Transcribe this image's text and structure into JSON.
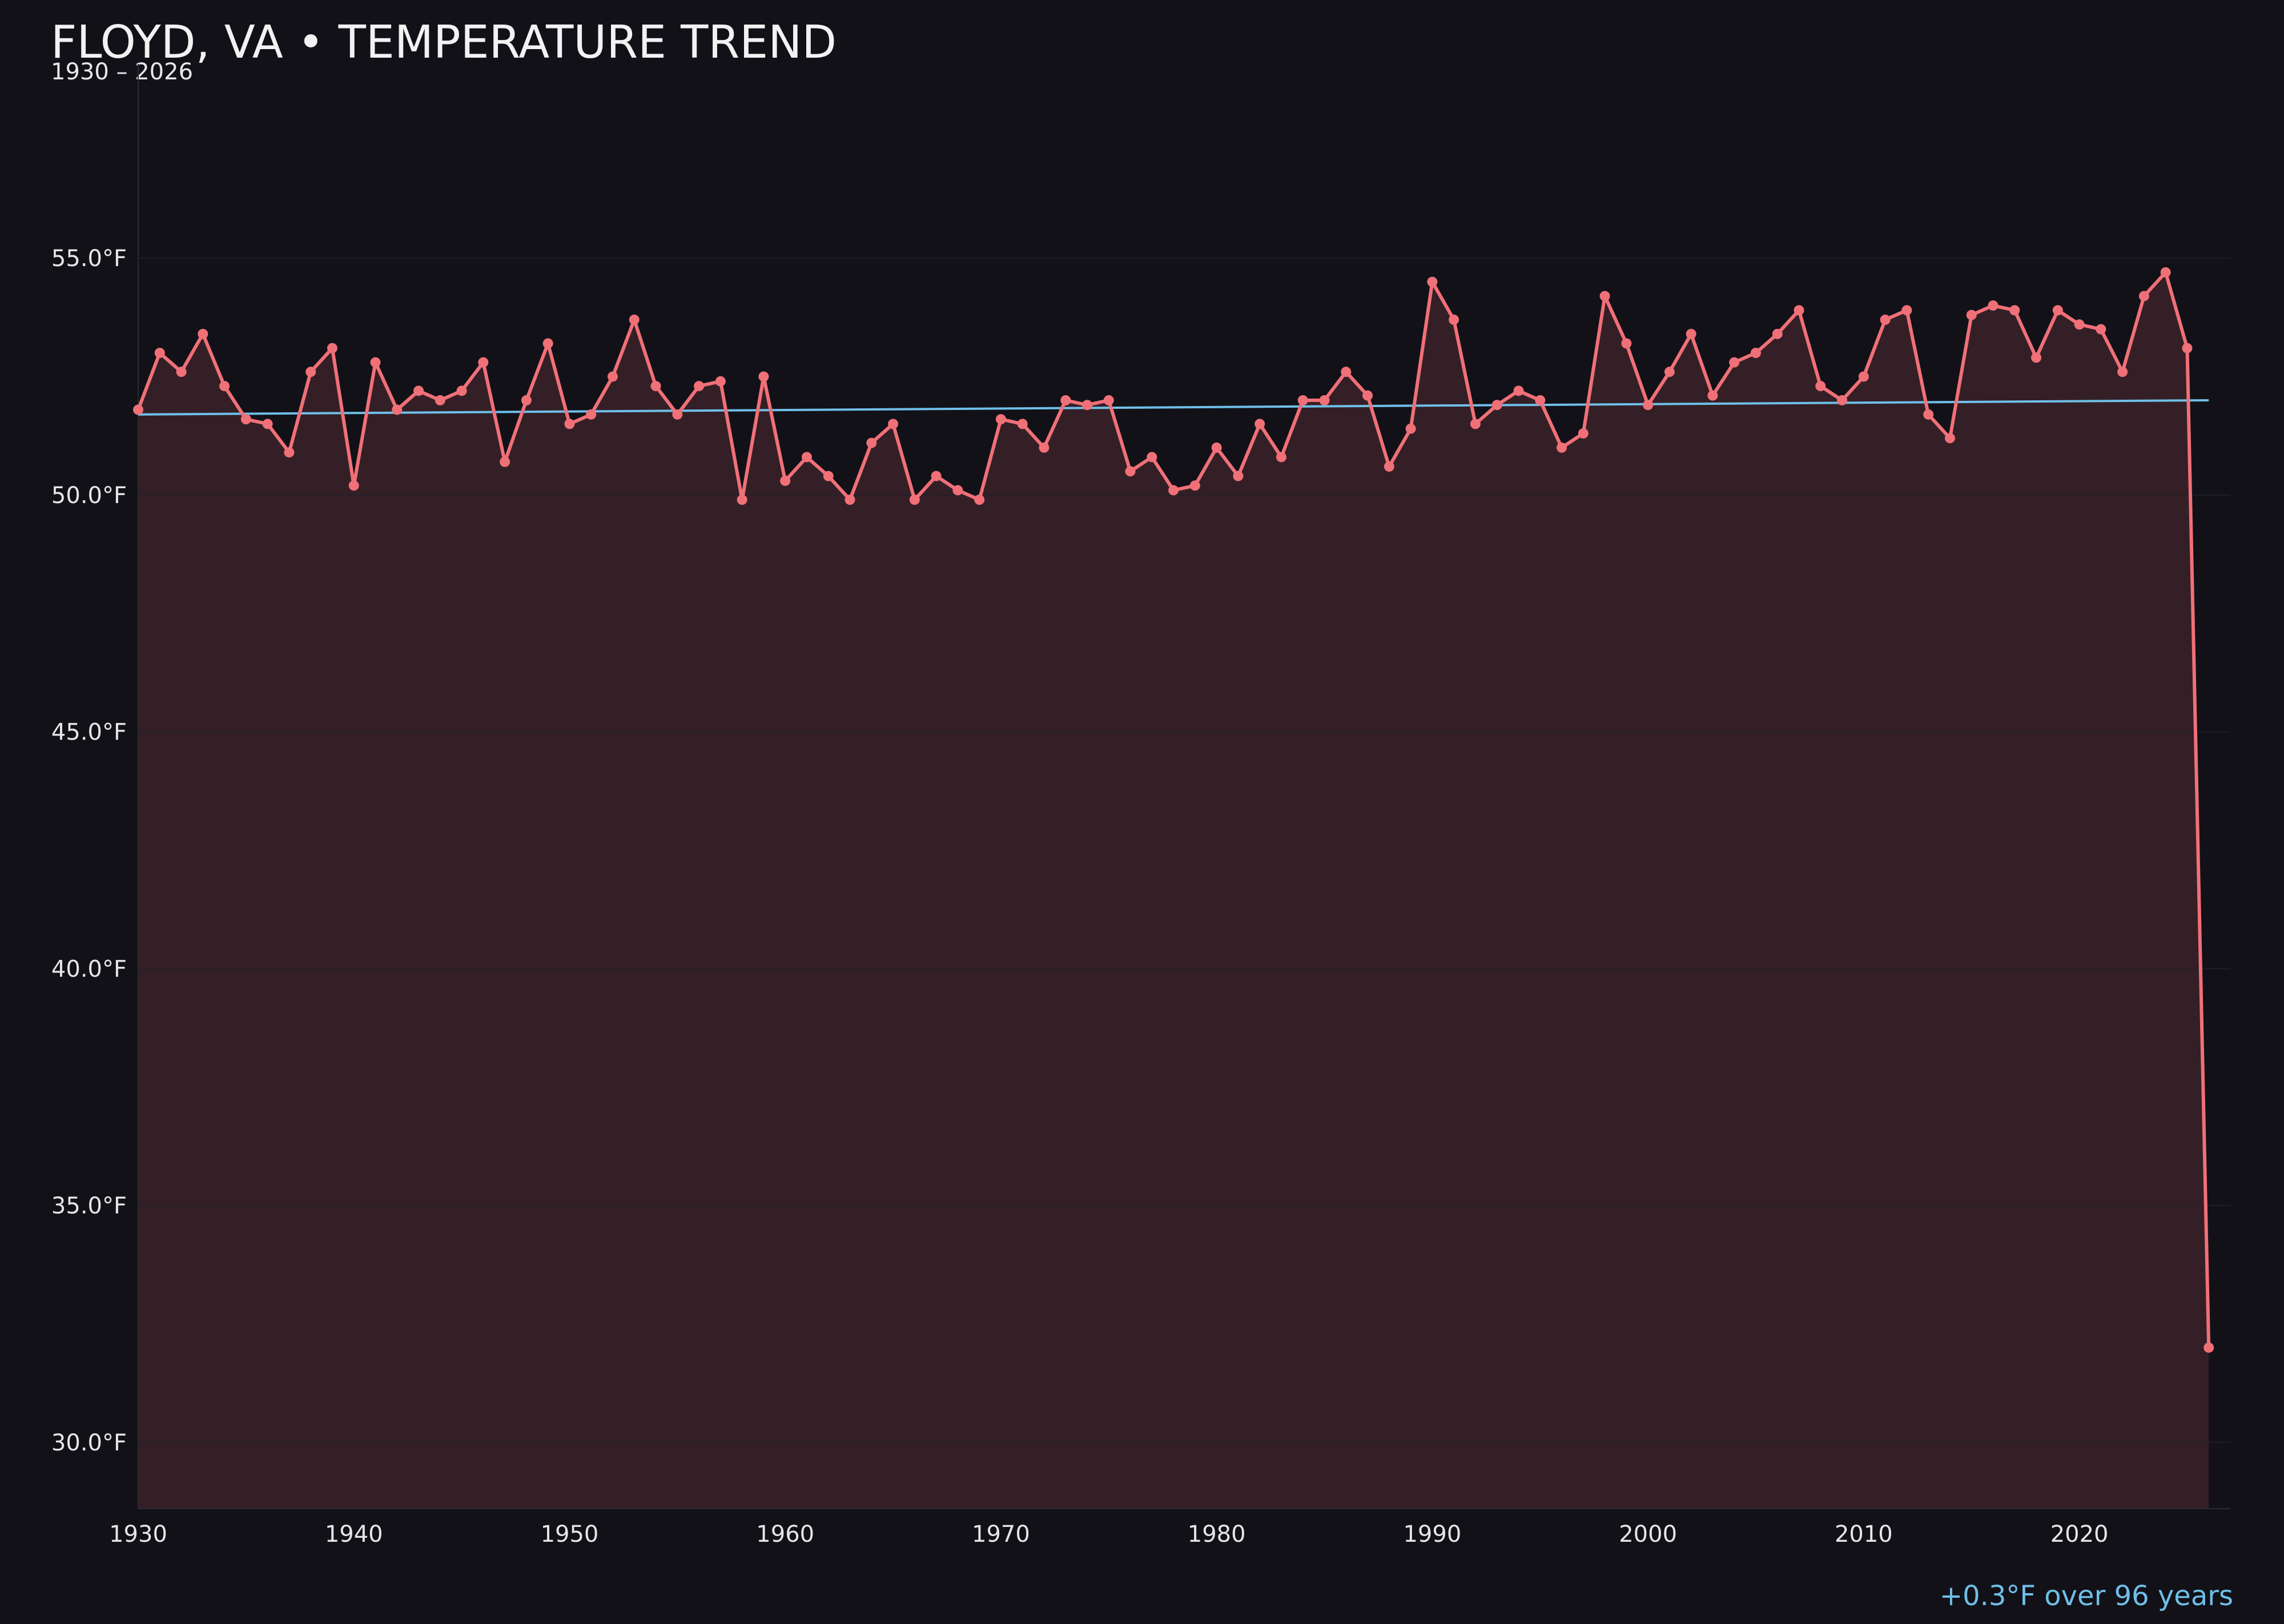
{
  "title": "FLOYD, VA • TEMPERATURE TREND",
  "subtitle": "1930 – 2026",
  "annotation": "+0.3°F over 96 years",
  "colors": {
    "background": "#121118",
    "series": "#f07078",
    "fill": "#351f26",
    "trend": "#6fbfe8",
    "grid": "#24212a",
    "axis": "#2c2a33",
    "text": "#e6e6e6"
  },
  "chart_data": {
    "type": "line",
    "title": "FLOYD, VA • TEMPERATURE TREND",
    "subtitle": "1930 – 2026",
    "xlabel": "",
    "ylabel": "",
    "x_ticks": [
      1930,
      1940,
      1950,
      1960,
      1970,
      1980,
      1990,
      2000,
      2010,
      2020
    ],
    "y_ticks": [
      {
        "value": 30,
        "label": "30.0°F"
      },
      {
        "value": 35,
        "label": "35.0°F"
      },
      {
        "value": 40,
        "label": "40.0°F"
      },
      {
        "value": 45,
        "label": "45.0°F"
      },
      {
        "value": 50,
        "label": "50.0°F"
      },
      {
        "value": 55,
        "label": "55.0°F"
      }
    ],
    "xlim": [
      1930,
      2027
    ],
    "ylim": [
      28.6,
      59.1
    ],
    "grid": true,
    "legend": "none",
    "area_fill": true,
    "series": [
      {
        "x": [
          1930,
          1931,
          1932,
          1933,
          1934,
          1935,
          1936,
          1937,
          1938,
          1939,
          1940,
          1941,
          1942,
          1943,
          1944,
          1945,
          1946,
          1947,
          1948,
          1949,
          1950,
          1951,
          1952,
          1953,
          1954,
          1955,
          1956,
          1957,
          1958,
          1959,
          1960,
          1961,
          1962,
          1963,
          1964,
          1965,
          1966,
          1967,
          1968,
          1969,
          1970,
          1971,
          1972,
          1973,
          1974,
          1975,
          1976,
          1977,
          1978,
          1979,
          1980,
          1981,
          1982,
          1983,
          1984,
          1985,
          1986,
          1987,
          1988,
          1989,
          1990,
          1991,
          1992,
          1993,
          1994,
          1995,
          1996,
          1997,
          1998,
          1999,
          2000,
          2001,
          2002,
          2003,
          2004,
          2005,
          2006,
          2007,
          2008,
          2009,
          2010,
          2011,
          2012,
          2013,
          2014,
          2015,
          2016,
          2017,
          2018,
          2019,
          2020,
          2021,
          2022,
          2023,
          2024,
          2025,
          2026
        ],
        "values": [
          51.8,
          53.0,
          52.6,
          53.4,
          52.3,
          51.6,
          51.5,
          50.9,
          52.6,
          53.1,
          50.2,
          52.8,
          51.8,
          52.2,
          52.0,
          52.2,
          52.8,
          50.7,
          52.0,
          53.2,
          51.5,
          51.7,
          52.5,
          53.7,
          52.3,
          51.7,
          52.3,
          52.4,
          49.9,
          52.5,
          50.3,
          50.8,
          50.4,
          49.9,
          51.1,
          51.5,
          49.9,
          50.4,
          50.1,
          49.9,
          51.6,
          51.5,
          51.0,
          52.0,
          51.9,
          52.0,
          50.5,
          50.8,
          50.1,
          50.2,
          51.0,
          50.4,
          51.5,
          50.8,
          52.0,
          52.0,
          52.6,
          52.1,
          50.6,
          51.4,
          54.5,
          53.7,
          51.5,
          51.9,
          52.2,
          52.0,
          51.0,
          51.3,
          54.2,
          53.2,
          51.9,
          52.6,
          53.4,
          52.1,
          52.8,
          53.0,
          53.4,
          53.9,
          52.3,
          52.0,
          52.5,
          53.7,
          53.9,
          51.7,
          51.2,
          53.8,
          54.0,
          53.9,
          52.9,
          53.9,
          53.6,
          53.5,
          52.6,
          54.2,
          54.7,
          53.1,
          32.0
        ]
      }
    ],
    "trend": {
      "x": [
        1930,
        2026
      ],
      "values": [
        51.7,
        52.0
      ]
    }
  }
}
